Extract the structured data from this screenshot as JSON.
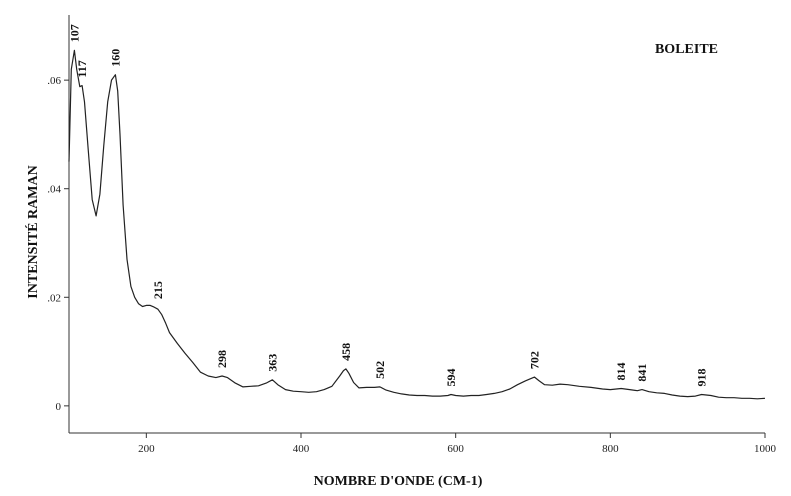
{
  "chart_data": {
    "type": "line",
    "title": "",
    "sample_label": "BOLEITE",
    "xlabel": "NOMBRE D'ONDE (CM-1)",
    "ylabel": "INTENSITÉ RAMAN",
    "xlim": [
      100,
      1000
    ],
    "ylim": [
      -0.005,
      0.072
    ],
    "x_ticks": [
      {
        "value": 200,
        "label": "200"
      },
      {
        "value": 400,
        "label": "400"
      },
      {
        "value": 600,
        "label": "600"
      },
      {
        "value": 800,
        "label": "800"
      },
      {
        "value": 1000,
        "label": "1000"
      }
    ],
    "y_ticks": [
      {
        "value": 0,
        "label": "0"
      },
      {
        "value": 0.02,
        "label": ".02"
      },
      {
        "value": 0.04,
        "label": ".04"
      },
      {
        "value": 0.06,
        "label": ".06"
      }
    ],
    "grid": false,
    "series": [
      {
        "x": [
          100,
          103,
          107,
          110,
          114,
          117,
          120,
          125,
          130,
          135,
          140,
          145,
          150,
          155,
          160,
          163,
          166,
          170,
          175,
          180,
          185,
          190,
          195,
          200,
          205,
          210,
          215,
          220,
          225,
          230,
          240,
          250,
          260,
          270,
          280,
          290,
          298,
          305,
          315,
          325,
          335,
          345,
          355,
          363,
          370,
          380,
          390,
          400,
          410,
          420,
          430,
          440,
          450,
          455,
          458,
          462,
          468,
          475,
          485,
          495,
          502,
          510,
          520,
          530,
          540,
          550,
          560,
          570,
          580,
          590,
          594,
          600,
          610,
          620,
          630,
          640,
          650,
          660,
          670,
          680,
          690,
          695,
          702,
          708,
          715,
          725,
          735,
          745,
          760,
          775,
          790,
          800,
          814,
          825,
          835,
          841,
          850,
          860,
          870,
          880,
          890,
          900,
          910,
          918,
          930,
          940,
          950,
          960,
          970,
          980,
          990,
          1000
        ],
        "y": [
          0.045,
          0.062,
          0.0655,
          0.062,
          0.0588,
          0.059,
          0.056,
          0.047,
          0.038,
          0.035,
          0.039,
          0.048,
          0.056,
          0.06,
          0.061,
          0.058,
          0.05,
          0.037,
          0.027,
          0.022,
          0.02,
          0.0188,
          0.0183,
          0.0185,
          0.0185,
          0.0182,
          0.0178,
          0.0168,
          0.0152,
          0.0135,
          0.0115,
          0.0097,
          0.008,
          0.0062,
          0.0055,
          0.0052,
          0.0055,
          0.0052,
          0.0042,
          0.0035,
          0.0036,
          0.0037,
          0.0042,
          0.0048,
          0.0039,
          0.003,
          0.0027,
          0.0026,
          0.0025,
          0.0026,
          0.003,
          0.0036,
          0.0055,
          0.0065,
          0.0068,
          0.006,
          0.0043,
          0.0033,
          0.0034,
          0.0034,
          0.0035,
          0.0029,
          0.0025,
          0.0022,
          0.002,
          0.0019,
          0.0019,
          0.0018,
          0.0018,
          0.0019,
          0.0021,
          0.0019,
          0.0018,
          0.0019,
          0.0019,
          0.0021,
          0.0023,
          0.0026,
          0.0031,
          0.0039,
          0.0046,
          0.0049,
          0.0053,
          0.0046,
          0.0039,
          0.0038,
          0.004,
          0.0039,
          0.0036,
          0.0034,
          0.0031,
          0.003,
          0.0032,
          0.003,
          0.0028,
          0.003,
          0.0026,
          0.0024,
          0.0023,
          0.002,
          0.0018,
          0.0017,
          0.0018,
          0.0021,
          0.0019,
          0.0016,
          0.0015,
          0.0015,
          0.0014,
          0.0014,
          0.0013,
          0.0014
        ]
      }
    ],
    "annotations": [
      {
        "label": "107",
        "x": 107,
        "y": 0.0655
      },
      {
        "label": "117",
        "x": 117,
        "y": 0.059
      },
      {
        "label": "160",
        "x": 160,
        "y": 0.061
      },
      {
        "label": "215",
        "x": 215,
        "y": 0.0182
      },
      {
        "label": "298",
        "x": 298,
        "y": 0.0055
      },
      {
        "label": "363",
        "x": 363,
        "y": 0.0048
      },
      {
        "label": "458",
        "x": 458,
        "y": 0.0068
      },
      {
        "label": "502",
        "x": 502,
        "y": 0.0035
      },
      {
        "label": "594",
        "x": 594,
        "y": 0.0021
      },
      {
        "label": "702",
        "x": 702,
        "y": 0.0053
      },
      {
        "label": "814",
        "x": 814,
        "y": 0.0032
      },
      {
        "label": "841",
        "x": 841,
        "y": 0.003
      },
      {
        "label": "918",
        "x": 918,
        "y": 0.0021
      }
    ]
  },
  "colors": {
    "line": "#222222",
    "axis": "#333333",
    "background": "#ffffff"
  }
}
